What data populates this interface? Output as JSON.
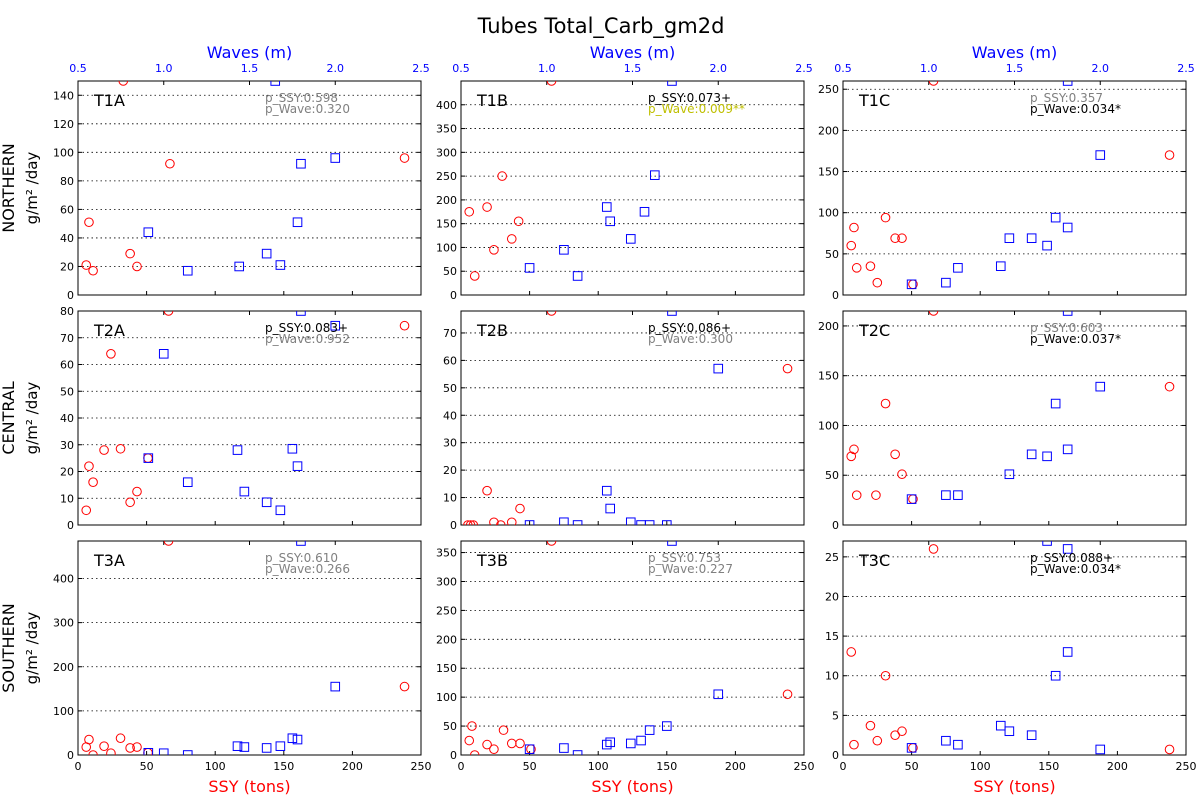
{
  "title": "Tubes Total_Carb_gm2d",
  "colors": {
    "ssy": "#ff0000",
    "wave": "#0000ff",
    "gray": "#808080",
    "olive": "#bfbf00",
    "black": "#000000"
  },
  "x_axis": {
    "label": "SSY (tons)",
    "ticks": [
      0,
      50,
      100,
      150,
      200,
      250
    ],
    "range": [
      0,
      250
    ]
  },
  "wave_axis": {
    "label": "Waves (m)",
    "ticks": [
      "0.5",
      "1.0",
      "1.5",
      "2.0",
      "2.5"
    ],
    "range": [
      0.5,
      2.5
    ]
  },
  "row_labels": [
    {
      "region": "NORTHERN",
      "unit": "g/m² /day"
    },
    {
      "region": "CENTRAL",
      "unit": "g/m² /day"
    },
    {
      "region": "SOUTHERN",
      "unit": "g/m² /day"
    }
  ],
  "chart_data": [
    {
      "type": "scatter",
      "id": "T1A",
      "row": 0,
      "col": 0,
      "ylim": [
        0,
        150
      ],
      "yticks": [
        0,
        20,
        40,
        60,
        80,
        100,
        120,
        140
      ],
      "p_ssy": "p_SSY:0.598",
      "p_wave": "p_Wave:0.320",
      "p_ssy_color": "gray",
      "p_wave_color": "gray",
      "ssy_points": [
        [
          6,
          21
        ],
        [
          8,
          51
        ],
        [
          11,
          17
        ],
        [
          33,
          150
        ],
        [
          38,
          29
        ],
        [
          43,
          20
        ],
        [
          67,
          92
        ],
        [
          238,
          96
        ]
      ],
      "wave_points": [
        [
          0.91,
          44
        ],
        [
          1.14,
          17
        ],
        [
          1.44,
          20
        ],
        [
          1.6,
          29
        ],
        [
          1.68,
          21
        ],
        [
          1.78,
          51
        ],
        [
          1.8,
          92
        ],
        [
          2.0,
          96
        ],
        [
          1.65,
          150
        ]
      ]
    },
    {
      "type": "scatter",
      "id": "T1B",
      "row": 0,
      "col": 1,
      "ylim": [
        0,
        450
      ],
      "yticks": [
        0,
        50,
        100,
        150,
        200,
        250,
        300,
        350,
        400
      ],
      "p_ssy": "p_SSY:0.073+",
      "p_wave": "p_Wave:0.009**",
      "p_ssy_color": "black",
      "p_wave_color": "olive",
      "ssy_points": [
        [
          6,
          175
        ],
        [
          10,
          40
        ],
        [
          19,
          185
        ],
        [
          24,
          95
        ],
        [
          30,
          250
        ],
        [
          37,
          118
        ],
        [
          42,
          155
        ],
        [
          66,
          450
        ]
      ],
      "wave_points": [
        [
          0.9,
          57
        ],
        [
          1.1,
          95
        ],
        [
          1.18,
          40
        ],
        [
          1.35,
          185
        ],
        [
          1.37,
          155
        ],
        [
          1.49,
          118
        ],
        [
          1.57,
          175
        ],
        [
          1.63,
          252
        ],
        [
          1.73,
          450
        ]
      ]
    },
    {
      "type": "scatter",
      "id": "T1C",
      "row": 0,
      "col": 2,
      "ylim": [
        0,
        260
      ],
      "yticks": [
        0,
        50,
        100,
        150,
        200,
        250
      ],
      "p_ssy": "p_SSY:0.357",
      "p_wave": "p_Wave:0.034*",
      "p_ssy_color": "gray",
      "p_wave_color": "red",
      "ssy_points": [
        [
          6,
          60
        ],
        [
          8,
          82
        ],
        [
          10,
          33
        ],
        [
          20,
          35
        ],
        [
          25,
          15
        ],
        [
          31,
          94
        ],
        [
          38,
          69
        ],
        [
          43,
          69
        ],
        [
          51,
          13
        ],
        [
          66,
          260
        ],
        [
          238,
          170
        ]
      ],
      "wave_points": [
        [
          0.9,
          13
        ],
        [
          1.1,
          15
        ],
        [
          1.17,
          33
        ],
        [
          1.42,
          35
        ],
        [
          1.47,
          69
        ],
        [
          1.6,
          69
        ],
        [
          1.69,
          60
        ],
        [
          1.74,
          94
        ],
        [
          1.81,
          82
        ],
        [
          2.0,
          170
        ],
        [
          1.81,
          260
        ]
      ]
    },
    {
      "type": "scatter",
      "id": "T2A",
      "row": 1,
      "col": 0,
      "ylim": [
        0,
        80
      ],
      "yticks": [
        0,
        10,
        20,
        30,
        40,
        50,
        60,
        70,
        80
      ],
      "p_ssy": "p_SSY:0.083+",
      "p_wave": "p_Wave:0.952",
      "p_ssy_color": "black",
      "p_wave_color": "gray",
      "ssy_points": [
        [
          6,
          5.5
        ],
        [
          8,
          22
        ],
        [
          11,
          16
        ],
        [
          19,
          28
        ],
        [
          24,
          64
        ],
        [
          31,
          28.5
        ],
        [
          38,
          8.5
        ],
        [
          43,
          12.5
        ],
        [
          51,
          25
        ],
        [
          66,
          80
        ],
        [
          238,
          74.5
        ]
      ],
      "wave_points": [
        [
          0.91,
          25
        ],
        [
          1.0,
          64
        ],
        [
          1.14,
          16
        ],
        [
          1.43,
          28
        ],
        [
          1.47,
          12.5
        ],
        [
          1.6,
          8.5
        ],
        [
          1.68,
          5.5
        ],
        [
          1.75,
          28.5
        ],
        [
          1.78,
          22
        ],
        [
          1.8,
          80
        ],
        [
          2.0,
          74.5
        ]
      ]
    },
    {
      "type": "scatter",
      "id": "T2B",
      "row": 1,
      "col": 1,
      "ylim": [
        0,
        78
      ],
      "yticks": [
        0,
        10,
        20,
        30,
        40,
        50,
        60,
        70
      ],
      "p_ssy": "p_SSY:0.086+",
      "p_wave": "p_Wave:0.300",
      "p_ssy_color": "black",
      "p_wave_color": "gray",
      "ssy_points": [
        [
          5,
          0
        ],
        [
          7,
          0
        ],
        [
          9,
          0
        ],
        [
          19,
          12.5
        ],
        [
          24,
          1
        ],
        [
          29,
          0
        ],
        [
          37,
          1
        ],
        [
          43,
          6
        ],
        [
          66,
          78
        ],
        [
          238,
          57
        ]
      ],
      "wave_points": [
        [
          0.9,
          0
        ],
        [
          1.1,
          1
        ],
        [
          1.18,
          0
        ],
        [
          1.35,
          12.5
        ],
        [
          1.37,
          6
        ],
        [
          1.49,
          1
        ],
        [
          1.55,
          0
        ],
        [
          1.6,
          0
        ],
        [
          1.7,
          0
        ],
        [
          1.73,
          78
        ],
        [
          2.0,
          57
        ]
      ]
    },
    {
      "type": "scatter",
      "id": "T2C",
      "row": 1,
      "col": 2,
      "ylim": [
        0,
        215
      ],
      "yticks": [
        0,
        50,
        100,
        150,
        200
      ],
      "p_ssy": "p_SSY:0.603",
      "p_wave": "p_Wave:0.037*",
      "p_ssy_color": "gray",
      "p_wave_color": "red",
      "ssy_points": [
        [
          6,
          69
        ],
        [
          8,
          76
        ],
        [
          10,
          30
        ],
        [
          24,
          30
        ],
        [
          31,
          122
        ],
        [
          38,
          71
        ],
        [
          43,
          51
        ],
        [
          51,
          26
        ],
        [
          66,
          215
        ],
        [
          238,
          139
        ]
      ],
      "wave_points": [
        [
          0.9,
          26
        ],
        [
          1.1,
          30
        ],
        [
          1.17,
          30
        ],
        [
          1.47,
          51
        ],
        [
          1.6,
          71
        ],
        [
          1.69,
          69
        ],
        [
          1.74,
          122
        ],
        [
          1.81,
          76
        ],
        [
          1.81,
          215
        ],
        [
          2.0,
          139
        ]
      ]
    },
    {
      "type": "scatter",
      "id": "T3A",
      "row": 2,
      "col": 0,
      "ylim": [
        0,
        485
      ],
      "yticks": [
        0,
        100,
        200,
        300,
        400
      ],
      "p_ssy": "p_SSY:0.610",
      "p_wave": "p_Wave:0.266",
      "p_ssy_color": "gray",
      "p_wave_color": "gray",
      "ssy_points": [
        [
          6,
          18
        ],
        [
          8,
          35
        ],
        [
          11,
          0
        ],
        [
          19,
          20
        ],
        [
          24,
          4
        ],
        [
          31,
          38
        ],
        [
          38,
          16
        ],
        [
          43,
          18
        ],
        [
          51,
          5
        ],
        [
          66,
          485
        ],
        [
          238,
          155
        ]
      ],
      "wave_points": [
        [
          0.91,
          5
        ],
        [
          1.0,
          4
        ],
        [
          1.14,
          0
        ],
        [
          1.43,
          20
        ],
        [
          1.47,
          18
        ],
        [
          1.6,
          16
        ],
        [
          1.68,
          20
        ],
        [
          1.75,
          38
        ],
        [
          1.78,
          35
        ],
        [
          1.8,
          485
        ],
        [
          2.0,
          155
        ]
      ]
    },
    {
      "type": "scatter",
      "id": "T3B",
      "row": 2,
      "col": 1,
      "ylim": [
        0,
        370
      ],
      "yticks": [
        0,
        50,
        100,
        150,
        200,
        250,
        300,
        350
      ],
      "p_ssy": "p_SSY:0.753",
      "p_wave": "p_Wave:0.227",
      "p_ssy_color": "gray",
      "p_wave_color": "gray",
      "ssy_points": [
        [
          6,
          25
        ],
        [
          8,
          50
        ],
        [
          10,
          0
        ],
        [
          19,
          18
        ],
        [
          24,
          10
        ],
        [
          31,
          43
        ],
        [
          37,
          20
        ],
        [
          43,
          20
        ],
        [
          51,
          10
        ],
        [
          66,
          370
        ],
        [
          238,
          105
        ]
      ],
      "wave_points": [
        [
          0.9,
          10
        ],
        [
          1.1,
          12
        ],
        [
          1.18,
          0
        ],
        [
          1.35,
          18
        ],
        [
          1.37,
          22
        ],
        [
          1.49,
          20
        ],
        [
          1.55,
          25
        ],
        [
          1.6,
          43
        ],
        [
          1.7,
          50
        ],
        [
          1.73,
          370
        ],
        [
          2.0,
          105
        ]
      ]
    },
    {
      "type": "scatter",
      "id": "T3C",
      "row": 2,
      "col": 2,
      "ylim": [
        0,
        27
      ],
      "yticks": [
        0,
        5,
        10,
        15,
        20,
        25
      ],
      "p_ssy": "p_SSY:0.088+",
      "p_wave": "p_Wave:0.034*",
      "p_ssy_color": "black",
      "p_wave_color": "red",
      "ssy_points": [
        [
          6,
          13
        ],
        [
          8,
          1.3
        ],
        [
          20,
          3.7
        ],
        [
          25,
          1.8
        ],
        [
          31,
          10
        ],
        [
          38,
          2.5
        ],
        [
          43,
          3
        ],
        [
          51,
          0.9
        ],
        [
          66,
          26
        ],
        [
          238,
          0.7
        ]
      ],
      "wave_points": [
        [
          0.9,
          0.9
        ],
        [
          1.1,
          1.8
        ],
        [
          1.17,
          1.3
        ],
        [
          1.42,
          3.7
        ],
        [
          1.47,
          3
        ],
        [
          1.6,
          2.5
        ],
        [
          1.69,
          27
        ],
        [
          1.74,
          10
        ],
        [
          1.81,
          13
        ],
        [
          1.81,
          26
        ],
        [
          2.0,
          0.7
        ]
      ]
    }
  ]
}
